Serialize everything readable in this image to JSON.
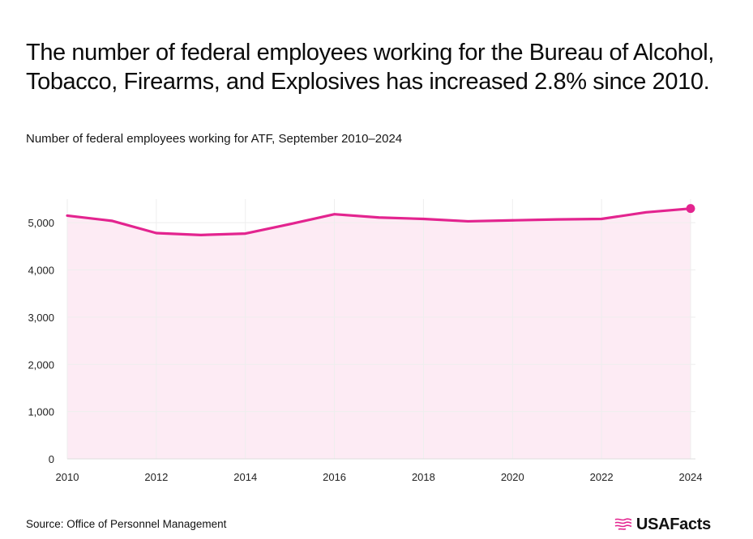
{
  "header": {
    "title": "The number of federal employees working for the Bureau of Alcohol, Tobacco, Firearms, and Explosives has increased 2.8% since 2010.",
    "subtitle": "Number of federal employees working for ATF, September 2010–2024"
  },
  "footer": {
    "source": "Source: Office of Personnel Management",
    "logo_text": "USAFacts"
  },
  "colors": {
    "line": "#e3248f",
    "fill": "#fdebf4",
    "grid": "#eeeeee",
    "axis": "#777777"
  },
  "icons": {
    "logo": "usafacts-flag-icon"
  },
  "chart_data": {
    "type": "area",
    "x": [
      2010,
      2011,
      2012,
      2013,
      2014,
      2015,
      2016,
      2017,
      2018,
      2019,
      2020,
      2021,
      2022,
      2023,
      2024
    ],
    "values": [
      5150,
      5040,
      4780,
      4740,
      4770,
      4970,
      5180,
      5110,
      5080,
      5030,
      5050,
      5070,
      5080,
      5220,
      5300
    ],
    "x_ticks": [
      2010,
      2012,
      2014,
      2016,
      2018,
      2020,
      2022,
      2024
    ],
    "x_tick_labels": [
      "2010",
      "2012",
      "2014",
      "2016",
      "2018",
      "2020",
      "2022",
      "2024"
    ],
    "y_ticks": [
      0,
      1000,
      2000,
      3000,
      4000,
      5000
    ],
    "y_tick_labels": [
      "0",
      "1,000",
      "2,000",
      "3,000",
      "4,000",
      "5,000"
    ],
    "xlim": [
      2010,
      2024
    ],
    "ylim": [
      0,
      5500
    ],
    "grid": true,
    "endpoint_marker": true,
    "title": "",
    "xlabel": "",
    "ylabel": ""
  }
}
